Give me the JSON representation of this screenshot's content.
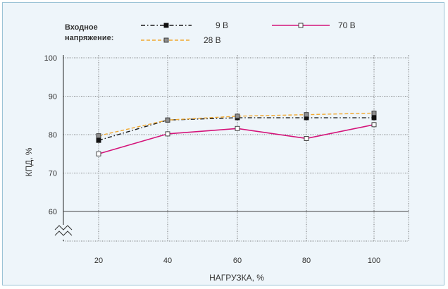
{
  "chart_data": {
    "type": "line",
    "xlabel": "НАГРУЗКА, %",
    "ylabel": "КПД, %",
    "x": [
      20,
      40,
      60,
      80,
      100
    ],
    "yticks": [
      60,
      70,
      80,
      90,
      100
    ],
    "ylim": [
      60,
      100
    ],
    "grid": true,
    "axis_break": true,
    "legend": {
      "title_line1": "Входное",
      "title_line2": "напряжение:",
      "placement": "top"
    },
    "series": [
      {
        "name": "9 В",
        "values": [
          78.5,
          83.8,
          84.4,
          84.4,
          84.4
        ],
        "color": "#1a1a1a",
        "dash": "dashdot",
        "marker": "filled-square-black"
      },
      {
        "name": "70 В",
        "values": [
          75.0,
          80.2,
          81.6,
          79.0,
          82.6
        ],
        "color": "#d4147a",
        "dash": "solid",
        "marker": "open-square"
      },
      {
        "name": "28 В",
        "values": [
          79.7,
          83.8,
          84.8,
          85.2,
          85.6
        ],
        "color": "#f0a830",
        "dash": "dashed",
        "marker": "gray-square"
      }
    ]
  }
}
